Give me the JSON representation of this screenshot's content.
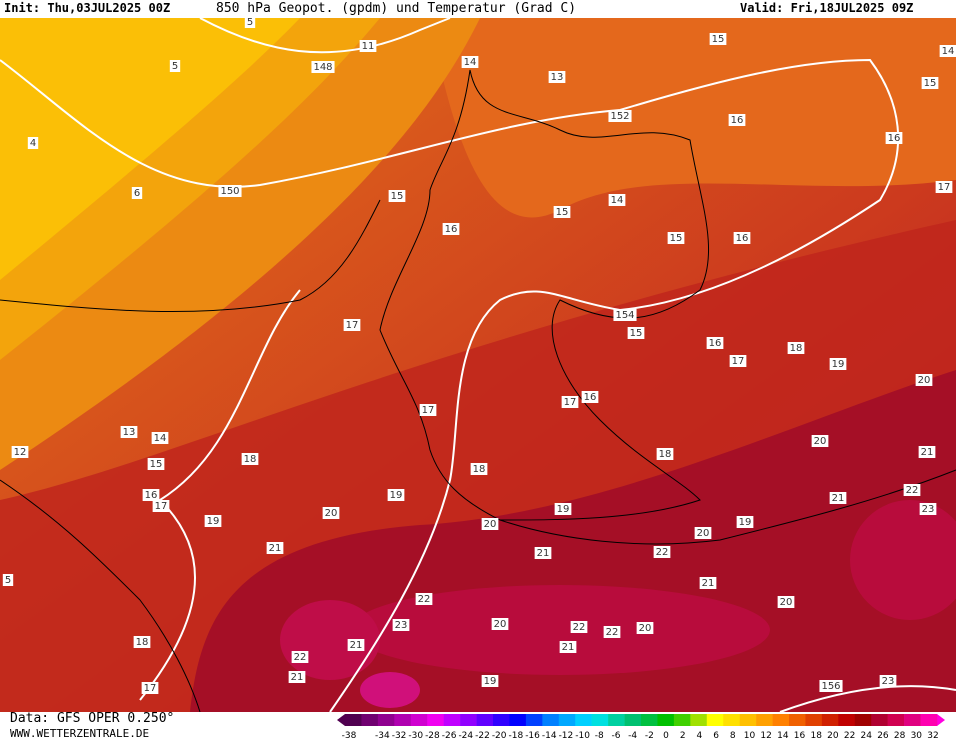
{
  "header": {
    "init": "Init: Thu,03JUL2025 00Z",
    "title": "850 hPa Geopot. (gpdm) und Temperatur (Grad C)",
    "valid": "Valid: Fri,18JUL2025 09Z"
  },
  "footer": {
    "data": "Data: GFS OPER 0.250°",
    "site": "WWW.WETTERZENTRALE.DE"
  },
  "labels": [
    5,
    11,
    5,
    148,
    14,
    13,
    15,
    14,
    15,
    4,
    152,
    16,
    16,
    6,
    150,
    15,
    15,
    14,
    17,
    16,
    15,
    16,
    17,
    154,
    15,
    16,
    18,
    17,
    19,
    20,
    17,
    17,
    16,
    13,
    14,
    12,
    20,
    21,
    15,
    18,
    18,
    18,
    16,
    17,
    19,
    21,
    22,
    19,
    20,
    19,
    23,
    20,
    20,
    19,
    21,
    21,
    22,
    5,
    21,
    20,
    22,
    23,
    20,
    22,
    22,
    20,
    18,
    21,
    21,
    22,
    21,
    19,
    17,
    156,
    23
  ],
  "colorbar": {
    "colors": [
      "#500050",
      "#700070",
      "#900090",
      "#b000b0",
      "#d000d0",
      "#f000f0",
      "#c000ff",
      "#9000ff",
      "#6000ff",
      "#3000ff",
      "#0000ff",
      "#0040ff",
      "#0080ff",
      "#00a8ff",
      "#00d0ff",
      "#00e0e0",
      "#00d0a0",
      "#00c070",
      "#00c040",
      "#00c000",
      "#40d000",
      "#a0e000",
      "#ffff00",
      "#ffe000",
      "#ffc000",
      "#ffa000",
      "#ff8000",
      "#f06000",
      "#e04000",
      "#d02000",
      "#c00000",
      "#a00000",
      "#b00030",
      "#d00050",
      "#e00080",
      "#ff00b0"
    ],
    "labels": [
      -38,
      -34,
      -32,
      -30,
      -28,
      -26,
      -24,
      -22,
      -20,
      -18,
      -16,
      -14,
      -12,
      -10,
      -8,
      -6,
      -4,
      -2,
      0,
      2,
      4,
      6,
      8,
      10,
      12,
      14,
      16,
      18,
      20,
      22,
      24,
      26,
      28,
      30,
      32
    ]
  }
}
